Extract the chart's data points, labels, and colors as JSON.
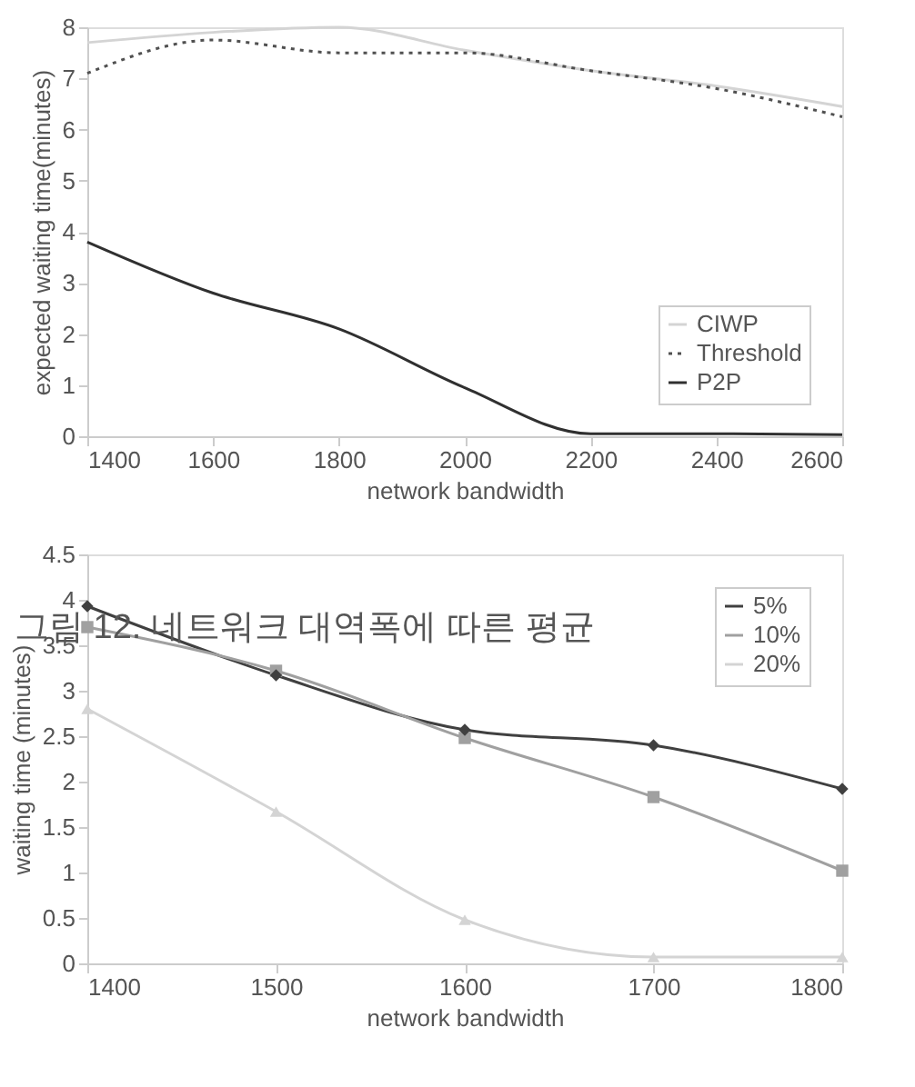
{
  "chart_data": [
    {
      "type": "line",
      "xlabel": "network bandwidth",
      "ylabel": "expected waiting time(minutes)",
      "x": [
        1400,
        1600,
        1800,
        2000,
        2200,
        2400,
        2600
      ],
      "xlim": [
        1400,
        2600
      ],
      "xticks": [
        1400,
        1600,
        1800,
        2000,
        2200,
        2400,
        2600
      ],
      "ylim": [
        0,
        8
      ],
      "yticks": [
        0,
        1,
        2,
        3,
        4,
        5,
        6,
        7,
        8
      ],
      "grid": false,
      "legend": "bottom right",
      "marker": "none",
      "series": [
        {
          "name": "CIWP",
          "color": "#d4d4d4",
          "line_style": "solid",
          "values": [
            7.7,
            7.9,
            8.0,
            7.55,
            7.15,
            6.85,
            6.45
          ]
        },
        {
          "name": "Threshold",
          "color": "#505050",
          "line_style": "dotted",
          "values": [
            7.1,
            7.75,
            7.5,
            7.5,
            7.15,
            6.8,
            6.25
          ]
        },
        {
          "name": "P2P",
          "color": "#303030",
          "line_style": "solid",
          "values": [
            3.8,
            2.8,
            2.1,
            0.95,
            0.05,
            0.05,
            0.03
          ]
        }
      ]
    },
    {
      "type": "line",
      "xlabel": "network bandwidth",
      "ylabel": "waiting time (minutes)",
      "x": [
        1400,
        1500,
        1600,
        1700,
        1800
      ],
      "xlim": [
        1400,
        1800
      ],
      "xticks": [
        1400,
        1500,
        1600,
        1700,
        1800
      ],
      "ylim": [
        0,
        4.5
      ],
      "yticks": [
        0,
        0.5,
        1,
        1.5,
        2,
        2.5,
        3,
        3.5,
        4,
        4.5
      ],
      "grid": false,
      "legend": "top right",
      "annotations": [
        "그림 12. 네트워크 대역폭에 따른 평균"
      ],
      "series": [
        {
          "name": "5%",
          "color": "#404040",
          "marker": "diamond",
          "line_style": "solid",
          "values": [
            3.93,
            3.17,
            2.57,
            2.4,
            1.92
          ]
        },
        {
          "name": "10%",
          "color": "#a0a0a0",
          "marker": "square",
          "line_style": "solid",
          "values": [
            3.7,
            3.22,
            2.48,
            1.83,
            1.02
          ]
        },
        {
          "name": "20%",
          "color": "#d4d4d4",
          "marker": "triangle",
          "line_style": "solid",
          "values": [
            2.8,
            1.67,
            0.48,
            0.07,
            0.07
          ]
        }
      ]
    }
  ]
}
